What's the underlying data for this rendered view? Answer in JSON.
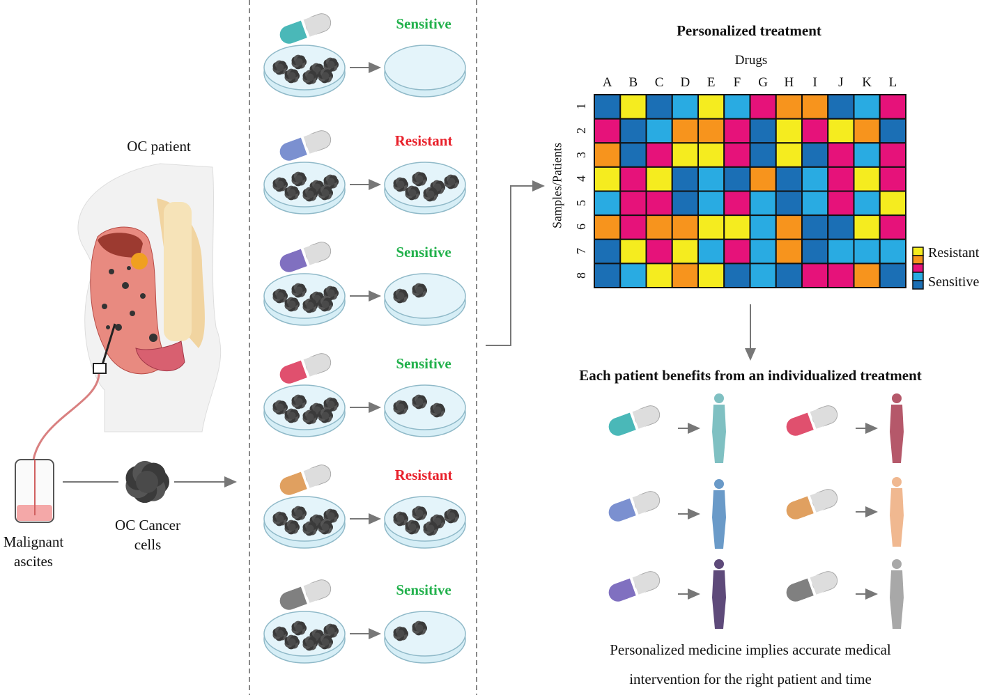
{
  "left": {
    "patient_label": "OC patient",
    "ascites_label": [
      "Malignant",
      "ascites"
    ],
    "cells_label": [
      "OC Cancer",
      "cells"
    ]
  },
  "assay": {
    "rows": [
      {
        "result": "Sensitive",
        "pill_color": "#4ab8b8",
        "remaining_spheroids": 0
      },
      {
        "result": "Resistant",
        "pill_color": "#7b90d0",
        "remaining_spheroids": 6
      },
      {
        "result": "Sensitive",
        "pill_color": "#8070c0",
        "remaining_spheroids": 2
      },
      {
        "result": "Sensitive",
        "pill_color": "#e0506e",
        "remaining_spheroids": 3
      },
      {
        "result": "Resistant",
        "pill_color": "#e0a060",
        "remaining_spheroids": 6
      },
      {
        "result": "Sensitive",
        "pill_color": "#808080",
        "remaining_spheroids": 2
      }
    ],
    "colors": {
      "Sensitive": "#22b14c",
      "Resistant": "#e8202a"
    }
  },
  "chart_data": {
    "type": "heatmap",
    "title": "Personalized treatment",
    "xlabel": "Drugs",
    "ylabel": "Samples/Patients",
    "columns": [
      "A",
      "B",
      "C",
      "D",
      "E",
      "F",
      "G",
      "H",
      "I",
      "J",
      "K",
      "L"
    ],
    "rows": [
      "1",
      "2",
      "3",
      "4",
      "5",
      "6",
      "7",
      "8"
    ],
    "scale_note": "1 = most resistant (yellow) ... 5 = most sensitive (dark blue)",
    "values": [
      [
        5,
        1,
        5,
        4,
        1,
        4,
        3,
        2,
        2,
        5,
        4,
        3
      ],
      [
        3,
        5,
        4,
        2,
        2,
        3,
        5,
        1,
        3,
        1,
        2,
        5
      ],
      [
        2,
        5,
        3,
        1,
        1,
        3,
        5,
        1,
        5,
        3,
        4,
        3
      ],
      [
        1,
        3,
        1,
        5,
        4,
        5,
        2,
        5,
        4,
        3,
        1,
        3
      ],
      [
        4,
        3,
        3,
        5,
        4,
        3,
        4,
        5,
        4,
        3,
        4,
        1
      ],
      [
        2,
        3,
        2,
        2,
        1,
        1,
        4,
        2,
        5,
        5,
        1,
        3
      ],
      [
        5,
        1,
        3,
        1,
        4,
        3,
        4,
        2,
        5,
        4,
        4,
        4
      ],
      [
        5,
        4,
        1,
        2,
        1,
        5,
        4,
        5,
        3,
        3,
        2,
        5
      ]
    ],
    "level_colors": [
      "#f5ec1f",
      "#f7941d",
      "#e6127a",
      "#29abe2",
      "#1b6fb5"
    ],
    "legend": {
      "top": "Resistant",
      "bottom": "Sensitive",
      "placement": "right"
    }
  },
  "outcome": {
    "title": "Each patient benefits from an individualized treatment",
    "pairs": [
      {
        "pill_color": "#4ab8b8",
        "person_color": "#7fc0c2"
      },
      {
        "pill_color": "#e0506e",
        "person_color": "#b5586a"
      },
      {
        "pill_color": "#7b90d0",
        "person_color": "#6a9ac8"
      },
      {
        "pill_color": "#e0a060",
        "person_color": "#f0b890"
      },
      {
        "pill_color": "#8070c0",
        "person_color": "#5e4a7a"
      },
      {
        "pill_color": "#808080",
        "person_color": "#a8a8a8"
      }
    ],
    "caption": [
      "Personalized medicine implies accurate medical",
      "intervention for the right patient and time"
    ]
  }
}
